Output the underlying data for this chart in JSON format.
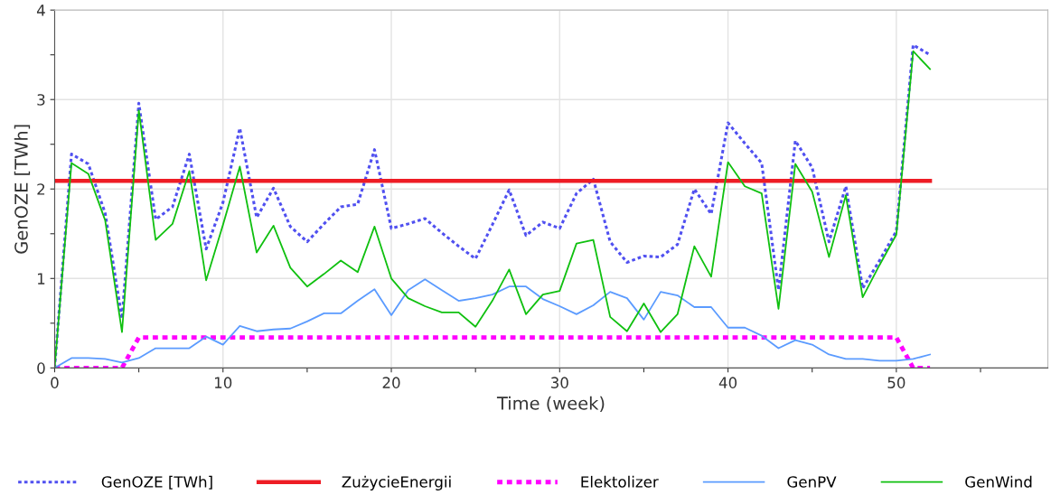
{
  "chart_data": {
    "type": "line",
    "xlabel": "Time (week)",
    "ylabel": "GenOZE [TWh]",
    "x": [
      0,
      1,
      2,
      3,
      4,
      5,
      6,
      7,
      8,
      9,
      10,
      11,
      12,
      13,
      14,
      15,
      16,
      17,
      18,
      19,
      20,
      21,
      22,
      23,
      24,
      25,
      26,
      27,
      28,
      29,
      30,
      31,
      32,
      33,
      34,
      35,
      36,
      37,
      38,
      39,
      40,
      41,
      42,
      43,
      44,
      45,
      46,
      47,
      48,
      49,
      50,
      51,
      52
    ],
    "series": [
      {
        "name": "GenOZE [TWh]",
        "color": "#5050f0",
        "line_style": "dotted",
        "values": [
          0,
          2.39,
          2.28,
          1.73,
          0.55,
          2.96,
          1.66,
          1.8,
          2.39,
          1.33,
          1.85,
          2.68,
          1.68,
          2.01,
          1.58,
          1.41,
          1.61,
          1.8,
          1.83,
          2.44,
          1.56,
          1.61,
          1.67,
          1.51,
          1.36,
          1.22,
          1.6,
          1.99,
          1.48,
          1.63,
          1.56,
          1.95,
          2.11,
          1.41,
          1.18,
          1.25,
          1.24,
          1.38,
          2.0,
          1.72,
          2.74,
          2.51,
          2.29,
          0.87,
          2.54,
          2.24,
          1.41,
          2.03,
          0.89,
          1.2,
          1.53,
          3.61,
          3.5
        ]
      },
      {
        "name": "ZużycieEnergii",
        "color": "#ee1c25",
        "line_style": "solid",
        "values": [
          2.09,
          2.09,
          2.09,
          2.09,
          2.09,
          2.09,
          2.09,
          2.09,
          2.09,
          2.09,
          2.09,
          2.09,
          2.09,
          2.09,
          2.09,
          2.09,
          2.09,
          2.09,
          2.09,
          2.09,
          2.09,
          2.09,
          2.09,
          2.09,
          2.09,
          2.09,
          2.09,
          2.09,
          2.09,
          2.09,
          2.09,
          2.09,
          2.09,
          2.09,
          2.09,
          2.09,
          2.09,
          2.09,
          2.09,
          2.09,
          2.09,
          2.09,
          2.09,
          2.09,
          2.09,
          2.09,
          2.09,
          2.09,
          2.09,
          2.09,
          2.09,
          2.09,
          2.09
        ]
      },
      {
        "name": "Elektolizer",
        "color": "#ff00ff",
        "line_style": "dotted",
        "values": [
          0,
          0,
          0,
          0,
          0,
          0.34,
          0.34,
          0.34,
          0.34,
          0.34,
          0.34,
          0.34,
          0.34,
          0.34,
          0.34,
          0.34,
          0.34,
          0.34,
          0.34,
          0.34,
          0.34,
          0.34,
          0.34,
          0.34,
          0.34,
          0.34,
          0.34,
          0.34,
          0.34,
          0.34,
          0.34,
          0.34,
          0.34,
          0.34,
          0.34,
          0.34,
          0.34,
          0.34,
          0.34,
          0.34,
          0.34,
          0.34,
          0.34,
          0.34,
          0.34,
          0.34,
          0.34,
          0.34,
          0.34,
          0.34,
          0.34,
          0,
          0
        ]
      },
      {
        "name": "GenPV",
        "color": "#5b9bff",
        "line_style": "solid",
        "values": [
          0,
          0.11,
          0.11,
          0.1,
          0.06,
          0.11,
          0.22,
          0.22,
          0.22,
          0.35,
          0.26,
          0.47,
          0.41,
          0.43,
          0.44,
          0.52,
          0.61,
          0.61,
          0.75,
          0.88,
          0.59,
          0.87,
          0.99,
          0.87,
          0.75,
          0.78,
          0.82,
          0.91,
          0.91,
          0.77,
          0.69,
          0.6,
          0.7,
          0.85,
          0.78,
          0.54,
          0.85,
          0.81,
          0.68,
          0.68,
          0.45,
          0.45,
          0.36,
          0.22,
          0.31,
          0.26,
          0.15,
          0.1,
          0.1,
          0.08,
          0.08,
          0.1,
          0.15
        ]
      },
      {
        "name": "GenWind",
        "color": "#10c010",
        "line_style": "solid",
        "values": [
          0,
          2.29,
          2.17,
          1.65,
          0.4,
          2.88,
          1.43,
          1.61,
          2.2,
          0.98,
          1.6,
          2.25,
          1.29,
          1.59,
          1.12,
          0.91,
          1.05,
          1.2,
          1.07,
          1.58,
          1.0,
          0.78,
          0.69,
          0.62,
          0.62,
          0.46,
          0.75,
          1.1,
          0.6,
          0.82,
          0.86,
          1.39,
          1.43,
          0.57,
          0.41,
          0.72,
          0.4,
          0.6,
          1.36,
          1.02,
          2.3,
          2.03,
          1.95,
          0.66,
          2.28,
          1.97,
          1.24,
          1.93,
          0.79,
          1.15,
          1.49,
          3.54,
          3.34
        ]
      }
    ],
    "xlim": [
      0,
      59
    ],
    "xticks": [
      0,
      {
        "value": 5,
        "label": null
      },
      10,
      {
        "value": 15,
        "label": null
      },
      20,
      {
        "value": 25,
        "label": null
      },
      30,
      {
        "value": 35,
        "label": null
      },
      40,
      {
        "value": 45,
        "label": null
      },
      50,
      {
        "value": 55,
        "label": null
      }
    ],
    "ylim": [
      0,
      4
    ],
    "yticks": [
      0,
      {
        "value": 0.5,
        "label": null
      },
      1,
      {
        "value": 1.5,
        "label": null
      },
      2,
      {
        "value": 2.5,
        "label": null
      },
      3,
      {
        "value": 3.5,
        "label": null
      },
      4
    ],
    "grid": true,
    "legend": "bottom",
    "marker": "none"
  }
}
